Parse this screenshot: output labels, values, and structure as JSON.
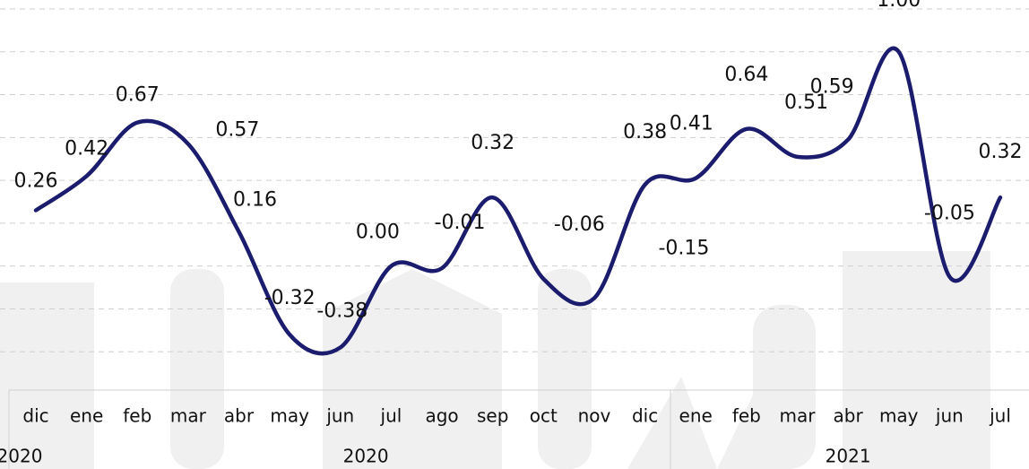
{
  "chart_data": {
    "type": "line",
    "category_groups": [
      {
        "label": "2020",
        "categories": [
          "dic"
        ]
      },
      {
        "label": "2020",
        "categories": [
          "ene",
          "feb",
          "mar",
          "abr",
          "may",
          "jun",
          "jul",
          "ago",
          "sep",
          "oct",
          "nov",
          "dic"
        ]
      },
      {
        "label": "2021",
        "categories": [
          "ene",
          "feb",
          "mar",
          "abr",
          "may",
          "jun",
          "jul"
        ]
      }
    ],
    "series": [
      {
        "color": "#1c1c6e",
        "values": [
          0.26,
          0.42,
          0.67,
          0.57,
          0.16,
          -0.32,
          -0.38,
          0.0,
          -0.01,
          0.32,
          -0.06,
          -0.15,
          0.38,
          0.41,
          0.64,
          0.51,
          0.59,
          1.0,
          -0.05,
          0.32
        ],
        "value_labels": [
          "0.26",
          "0.42",
          "0.67",
          "0.57",
          "0.16",
          "-0.32",
          "-0.38",
          "0.00",
          "-0.01",
          "0.32",
          "-0.06",
          "-0.15",
          "0.38",
          "0.41",
          "0.64",
          "0.51",
          "0.59",
          "1.00",
          "-0.05",
          "0.32"
        ]
      }
    ],
    "ylim": [
      -0.6,
      1.2
    ],
    "yticks": [
      -0.4,
      -0.2,
      0,
      0.2,
      0.4,
      0.6,
      0.8,
      1,
      1.2
    ],
    "grid": true
  }
}
